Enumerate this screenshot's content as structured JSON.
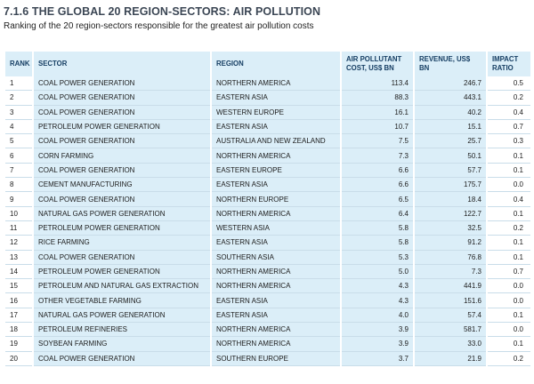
{
  "header": {
    "title": "7.1.6 THE GLOBAL 20 REGION-SECTORS: AIR POLLUTION",
    "subtitle": "Ranking of the 20 region-sectors responsible for the greatest air pollution costs"
  },
  "table": {
    "columns": [
      "RANK",
      "SECTOR",
      "REGION",
      "AIR POLLUTANT COST, US$ BN",
      "REVENUE, US$ BN",
      "IMPACT RATIO"
    ],
    "rows": [
      [
        "1",
        "COAL POWER GENERATION",
        "NORTHERN AMERICA",
        "113.4",
        "246.7",
        "0.5"
      ],
      [
        "2",
        "COAL POWER GENERATION",
        "EASTERN ASIA",
        "88.3",
        "443.1",
        "0.2"
      ],
      [
        "3",
        "COAL POWER GENERATION",
        "WESTERN EUROPE",
        "16.1",
        "40.2",
        "0.4"
      ],
      [
        "4",
        "PETROLEUM POWER GENERATION",
        "EASTERN ASIA",
        "10.7",
        "15.1",
        "0.7"
      ],
      [
        "5",
        "COAL POWER GENERATION",
        "AUSTRALIA AND NEW ZEALAND",
        "7.5",
        "25.7",
        "0.3"
      ],
      [
        "6",
        "CORN FARMING",
        "NORTHERN AMERICA",
        "7.3",
        "50.1",
        "0.1"
      ],
      [
        "7",
        "COAL POWER GENERATION",
        "EASTERN EUROPE",
        "6.6",
        "57.7",
        "0.1"
      ],
      [
        "8",
        "CEMENT MANUFACTURING",
        "EASTERN ASIA",
        "6.6",
        "175.7",
        "0.0"
      ],
      [
        "9",
        "COAL POWER GENERATION",
        "NORTHERN EUROPE",
        "6.5",
        "18.4",
        "0.4"
      ],
      [
        "10",
        "NATURAL GAS POWER GENERATION",
        "NORTHERN AMERICA",
        "6.4",
        "122.7",
        "0.1"
      ],
      [
        "11",
        "PETROLEUM POWER GENERATION",
        "WESTERN ASIA",
        "5.8",
        "32.5",
        "0.2"
      ],
      [
        "12",
        "RICE FARMING",
        "EASTERN ASIA",
        "5.8",
        "91.2",
        "0.1"
      ],
      [
        "13",
        "COAL POWER GENERATION",
        "SOUTHERN ASIA",
        "5.3",
        "76.8",
        "0.1"
      ],
      [
        "14",
        "PETROLEUM POWER GENERATION",
        "NORTHERN AMERICA",
        "5.0",
        "7.3",
        "0.7"
      ],
      [
        "15",
        "PETROLEUM AND NATURAL GAS EXTRACTION",
        "NORTHERN AMERICA",
        "4.3",
        "441.9",
        "0.0"
      ],
      [
        "16",
        "OTHER VEGETABLE FARMING",
        "EASTERN ASIA",
        "4.3",
        "151.6",
        "0.0"
      ],
      [
        "17",
        "NATURAL GAS POWER GENERATION",
        "EASTERN ASIA",
        "4.0",
        "57.4",
        "0.1"
      ],
      [
        "18",
        "PETROLEUM REFINERIES",
        "NORTHERN AMERICA",
        "3.9",
        "581.7",
        "0.0"
      ],
      [
        "19",
        "SOYBEAN FARMING",
        "NORTHERN AMERICA",
        "3.9",
        "33.0",
        "0.1"
      ],
      [
        "20",
        "COAL POWER GENERATION",
        "SOUTHERN EUROPE",
        "3.7",
        "21.9",
        "0.2"
      ]
    ]
  }
}
